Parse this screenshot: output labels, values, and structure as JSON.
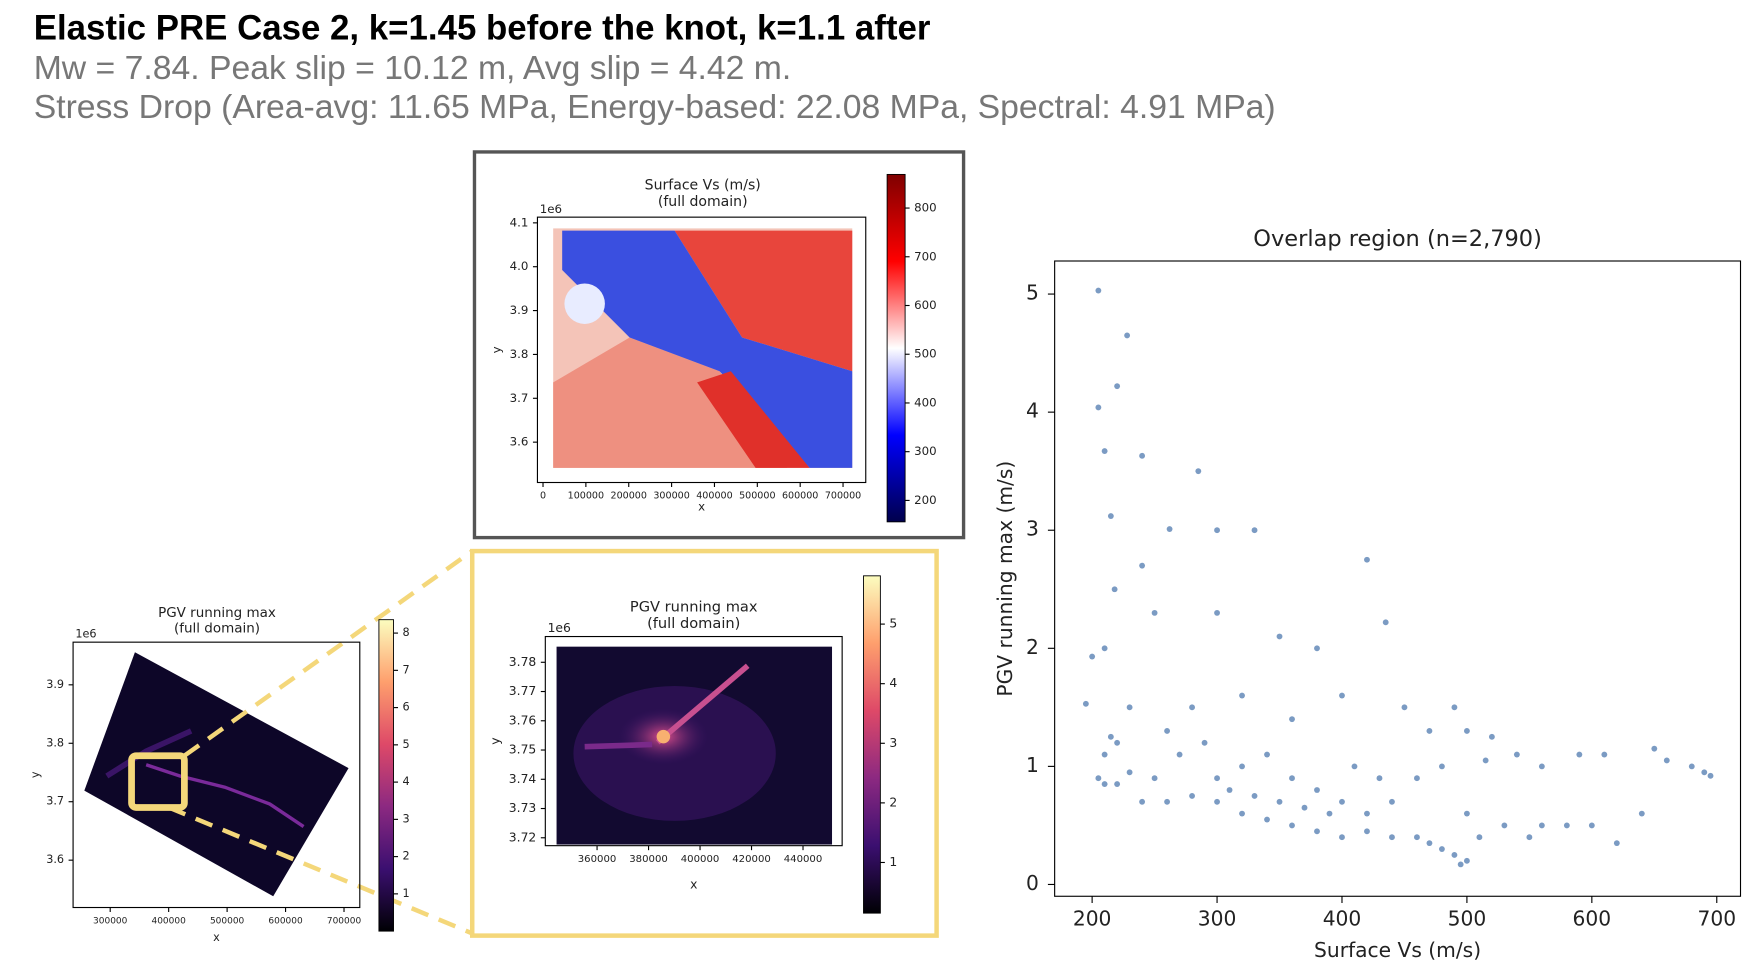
{
  "header": {
    "title": "Elastic PRE Case 2, k=1.45 before the knot, k=1.1 after",
    "subtitle": [
      "Mw = 7.84. Peak slip = 10.12 m, Avg slip = 4.42 m.",
      "Stress Drop (Area-avg: 11.65 MPa, Energy-based: 22.08 MPa, Spectral: 4.91 MPa)"
    ]
  },
  "chart_data": [
    {
      "type": "heatmap",
      "title": "Surface Vs (m/s)",
      "subtitle": "(full domain)",
      "x_label": "x",
      "y_label": "y",
      "y_offset": "1e6",
      "xlim": [
        -13000,
        753000
      ],
      "xticks": [
        0,
        100000,
        200000,
        300000,
        400000,
        500000,
        600000,
        700000
      ],
      "ylim": [
        3.508,
        4.113
      ],
      "yticks": [
        3.6,
        3.7,
        3.8,
        3.9,
        {
          "value": 4,
          "label": "4.0"
        },
        4.1
      ],
      "clim": [
        156,
        869
      ],
      "cticks": [
        200,
        300,
        400,
        500,
        600,
        700,
        800
      ],
      "colormap": [
        "#00004c",
        "#0000ff",
        "#ffffff",
        "#ff0000",
        "#7f0000"
      ]
    },
    {
      "type": "heatmap",
      "title": "PGV running max",
      "subtitle": "(full domain)",
      "x_label": "x",
      "y_label": "y",
      "y_offset": "1e6",
      "xlim": [
        236500,
        727000
      ],
      "xticks": [
        300000,
        400000,
        500000,
        600000,
        700000
      ],
      "ylim": [
        3.519,
        3.973
      ],
      "yticks": [
        3.6,
        3.7,
        3.8,
        3.9
      ],
      "clim": [
        0,
        8.36
      ],
      "cticks": [
        1,
        2,
        3,
        4,
        5,
        6,
        7,
        8
      ],
      "colormap": [
        "#000004",
        "#3b0f70",
        "#8c2981",
        "#de4968",
        "#fe9f6d",
        "#fcfdbf"
      ]
    },
    {
      "type": "heatmap",
      "title": "PGV running max",
      "subtitle": "(full domain)",
      "x_label": "x",
      "y_label": "y",
      "y_offset": "1e6",
      "xlim": [
        339900,
        455200
      ],
      "xticks": [
        360000,
        380000,
        400000,
        420000,
        440000
      ],
      "ylim": [
        3.7173,
        3.7888
      ],
      "yticks": [
        3.72,
        3.73,
        3.74,
        3.75,
        3.76,
        3.77,
        3.78
      ],
      "clim": [
        0.15,
        5.81
      ],
      "cticks": [
        1,
        2,
        3,
        4,
        5
      ],
      "colormap": [
        "#000004",
        "#3b0f70",
        "#8c2981",
        "#de4968",
        "#fe9f6d",
        "#fcfdbf"
      ]
    },
    {
      "type": "scatter",
      "title": "Overlap region (n=2,790)",
      "x_label": "Surface Vs (m/s)",
      "y_label": "PGV running max (m/s)",
      "xlim": [
        170,
        719
      ],
      "xticks": [
        200,
        300,
        400,
        500,
        600,
        700
      ],
      "ylim": [
        -0.1,
        5.28
      ],
      "yticks": [
        0,
        1,
        2,
        3,
        4,
        5
      ],
      "color": "#5a82b4",
      "x": [
        205,
        228,
        220,
        205,
        210,
        240,
        285,
        262,
        300,
        215,
        420,
        435,
        330,
        240,
        218,
        250,
        300,
        350,
        380,
        210,
        200,
        195,
        215,
        220,
        210,
        230,
        260,
        280,
        320,
        360,
        400,
        450,
        490,
        500,
        520,
        540,
        560,
        590,
        610,
        650,
        680,
        690,
        695,
        660,
        620,
        600,
        580,
        550,
        530,
        500,
        495,
        490,
        480,
        470,
        460,
        440,
        420,
        400,
        380,
        360,
        340,
        320,
        300,
        280,
        260,
        240,
        220,
        210,
        205,
        300,
        320,
        340,
        360,
        380,
        400,
        420,
        440,
        460,
        480,
        500,
        510,
        270,
        290,
        310,
        330,
        350,
        370,
        390,
        250,
        230,
        410,
        430,
        470,
        515,
        560,
        640
      ],
      "values": [
        5.03,
        4.65,
        4.22,
        4.04,
        3.67,
        3.63,
        3.5,
        3.01,
        3.0,
        3.12,
        2.75,
        2.22,
        3.0,
        2.7,
        2.5,
        2.3,
        2.3,
        2.1,
        2.0,
        2.0,
        1.93,
        1.53,
        1.25,
        1.2,
        1.1,
        0.95,
        1.3,
        1.5,
        1.6,
        1.4,
        1.6,
        1.5,
        1.5,
        1.3,
        1.25,
        1.1,
        1.0,
        1.1,
        1.1,
        1.15,
        1.0,
        0.95,
        0.92,
        1.05,
        0.35,
        0.5,
        0.5,
        0.4,
        0.5,
        0.2,
        0.17,
        0.25,
        0.3,
        0.35,
        0.4,
        0.4,
        0.45,
        0.4,
        0.45,
        0.5,
        0.55,
        0.6,
        0.7,
        0.75,
        0.7,
        0.7,
        0.85,
        0.85,
        0.9,
        0.9,
        1.0,
        1.1,
        0.9,
        0.8,
        0.7,
        0.6,
        0.7,
        0.9,
        1.0,
        0.6,
        0.4,
        1.1,
        1.2,
        0.8,
        0.75,
        0.7,
        0.65,
        0.6,
        0.9,
        1.5,
        1.0,
        0.9,
        1.3,
        1.05,
        0.5,
        0.6
      ]
    }
  ]
}
